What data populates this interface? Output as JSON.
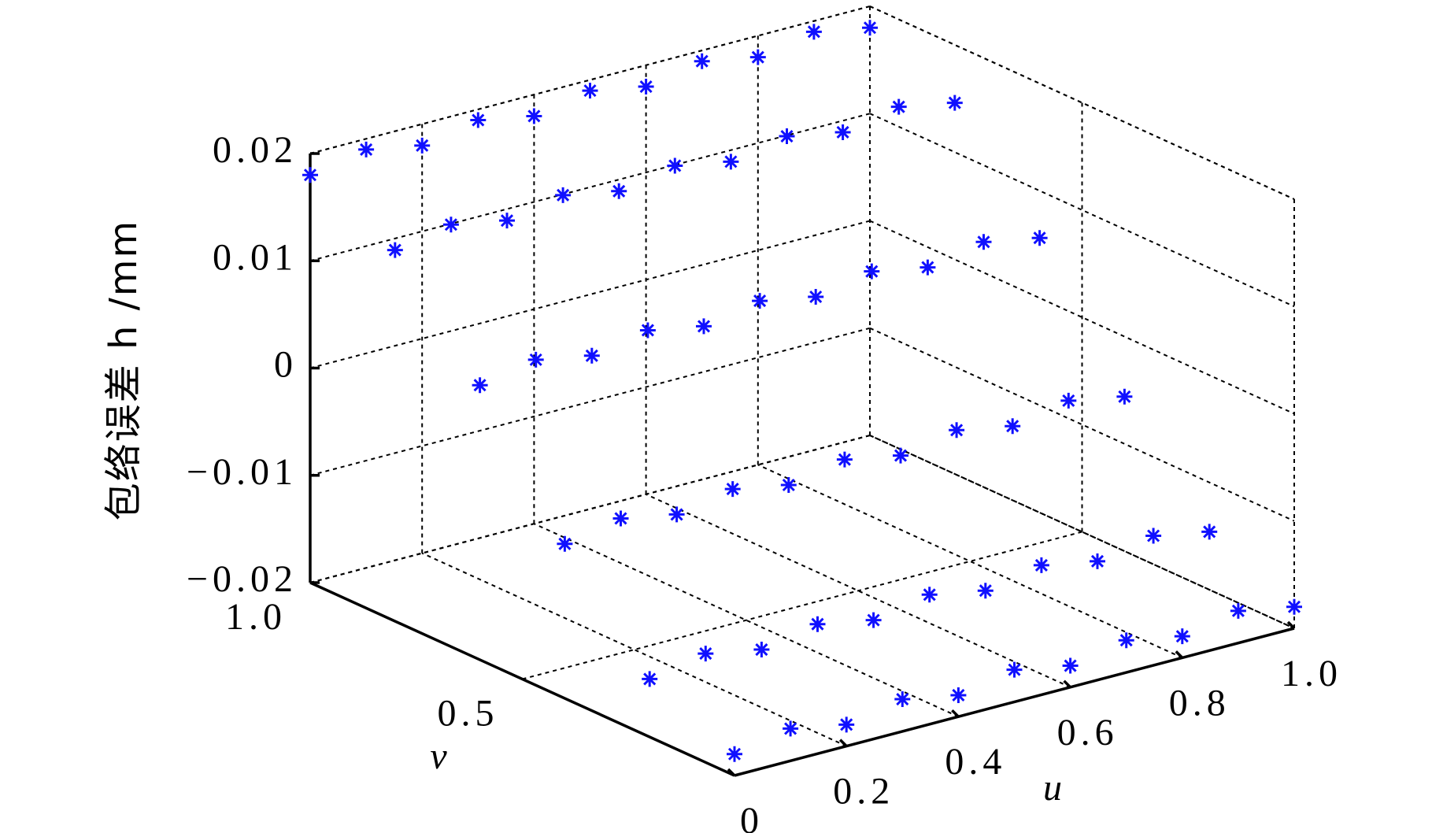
{
  "chart_data": {
    "type": "scatter3d",
    "xlabel": "u",
    "ylabel": "v",
    "zlabel": "包络误差 h /mm",
    "xlim": [
      0,
      1
    ],
    "ylim": [
      0,
      1
    ],
    "zlim": [
      -0.02,
      0.02
    ],
    "xticks": [
      0,
      0.2,
      0.4,
      0.6,
      0.8,
      {
        "value": 1,
        "label": "1.0"
      }
    ],
    "yticks": [
      0.5,
      {
        "value": 1,
        "label": "1.0"
      }
    ],
    "zticks": [
      {
        "value": -0.02,
        "label": "−0.02"
      },
      {
        "value": -0.01,
        "label": "−0.01"
      },
      0,
      0.01,
      0.02
    ],
    "grid": true,
    "series": [
      {
        "color": "#1010ff",
        "x": [
          0,
          0.1,
          0.2,
          0.3,
          0.4,
          0.5,
          0.6,
          0.7,
          0.8,
          0.9,
          1,
          0,
          0.1,
          0.2,
          0.3,
          0.4,
          0.5,
          0.6,
          0.7,
          0.8,
          0.9,
          1,
          0,
          0.1,
          0.2,
          0.3,
          0.4,
          0.5,
          0.6,
          0.7,
          0.8,
          0.9,
          1,
          0,
          0.1,
          0.2,
          0.3,
          0.4,
          0.5,
          0.6,
          0.7,
          0.8,
          0.9,
          1,
          0,
          0.1,
          0.2,
          0.3,
          0.4,
          0.5,
          0.6,
          0.7,
          0.8,
          0.9,
          1,
          0,
          0.1,
          0.2,
          0.3,
          0.4,
          0.5,
          0.6,
          0.7,
          0.8,
          0.9,
          1
        ],
        "y": [
          0,
          0,
          0,
          0,
          0,
          0,
          0,
          0,
          0,
          0,
          0,
          0.2,
          0.2,
          0.2,
          0.2,
          0.2,
          0.2,
          0.2,
          0.2,
          0.2,
          0.2,
          0.2,
          0.4,
          0.4,
          0.4,
          0.4,
          0.4,
          0.4,
          0.4,
          0.4,
          0.4,
          0.4,
          0.4,
          0.6,
          0.6,
          0.6,
          0.6,
          0.6,
          0.6,
          0.6,
          0.6,
          0.6,
          0.6,
          0.6,
          0.8,
          0.8,
          0.8,
          0.8,
          0.8,
          0.8,
          0.8,
          0.8,
          0.8,
          0.8,
          0.8,
          1,
          1,
          1,
          1,
          1,
          1,
          1,
          1,
          1,
          1,
          1
        ],
        "z": [
          -0.018,
          -0.017,
          -0.018,
          -0.017,
          -0.018,
          -0.017,
          -0.018,
          -0.017,
          -0.018,
          -0.017,
          -0.018,
          -0.0146,
          -0.0136,
          -0.0146,
          -0.0136,
          -0.0146,
          -0.0136,
          -0.0146,
          -0.0136,
          -0.0146,
          -0.0136,
          -0.0146,
          -0.0056,
          -0.0046,
          -0.0056,
          -0.0046,
          -0.0056,
          -0.0046,
          -0.0056,
          -0.0046,
          -0.0056,
          -0.0046,
          -0.0056,
          0.0056,
          0.0066,
          0.0056,
          0.0066,
          0.0056,
          0.0066,
          0.0056,
          0.0066,
          0.0056,
          0.0066,
          0.0056,
          0.0146,
          0.0156,
          0.0146,
          0.0156,
          0.0146,
          0.0156,
          0.0146,
          0.0156,
          0.0146,
          0.0156,
          0.0146,
          0.018,
          0.019,
          0.018,
          0.019,
          0.018,
          0.019,
          0.018,
          0.019,
          0.018,
          0.019,
          0.018
        ]
      }
    ]
  }
}
